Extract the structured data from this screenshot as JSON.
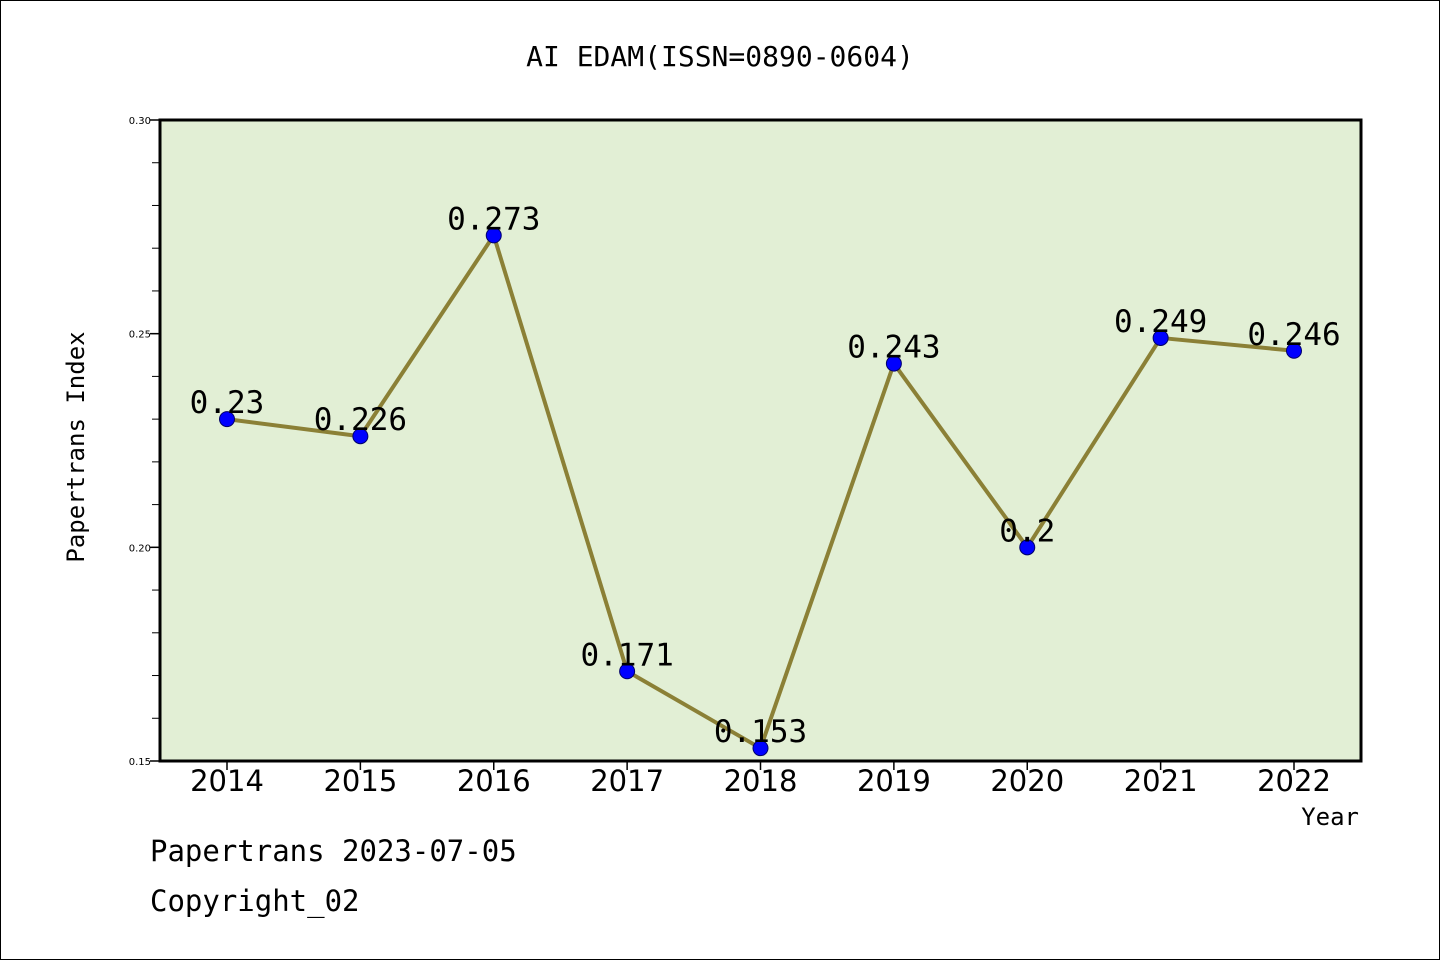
{
  "chart_data": {
    "type": "line",
    "title": "AI EDAM(ISSN=0890-0604)",
    "xlabel": "Year",
    "ylabel": "Papertrans Index",
    "categories": [
      "2014",
      "2015",
      "2016",
      "2017",
      "2018",
      "2019",
      "2020",
      "2021",
      "2022"
    ],
    "values": [
      0.23,
      0.226,
      0.273,
      0.171,
      0.153,
      0.243,
      0.2,
      0.249,
      0.246
    ],
    "data_labels": [
      "0.23",
      "0.226",
      "0.273",
      "0.171",
      "0.153",
      "0.243",
      "0.2",
      "0.249",
      "0.246"
    ],
    "ylim": [
      0.15,
      0.3
    ],
    "yticks": [
      0.15,
      0.2,
      0.25,
      0.3
    ],
    "ytick_labels": [
      "0.15",
      "0.20",
      "0.25",
      "0.30"
    ],
    "y_minor_step": 0.01,
    "grid": false,
    "legend": "none",
    "colors": {
      "plot_background": "#e2efd5",
      "line": "#8b8036",
      "marker_fill": "#0000ff",
      "marker_edge": "#00006a",
      "axes": "#000000"
    }
  },
  "footer": {
    "date_text": "Papertrans 2023-07-05",
    "copyright_text": "Copyright_02"
  }
}
